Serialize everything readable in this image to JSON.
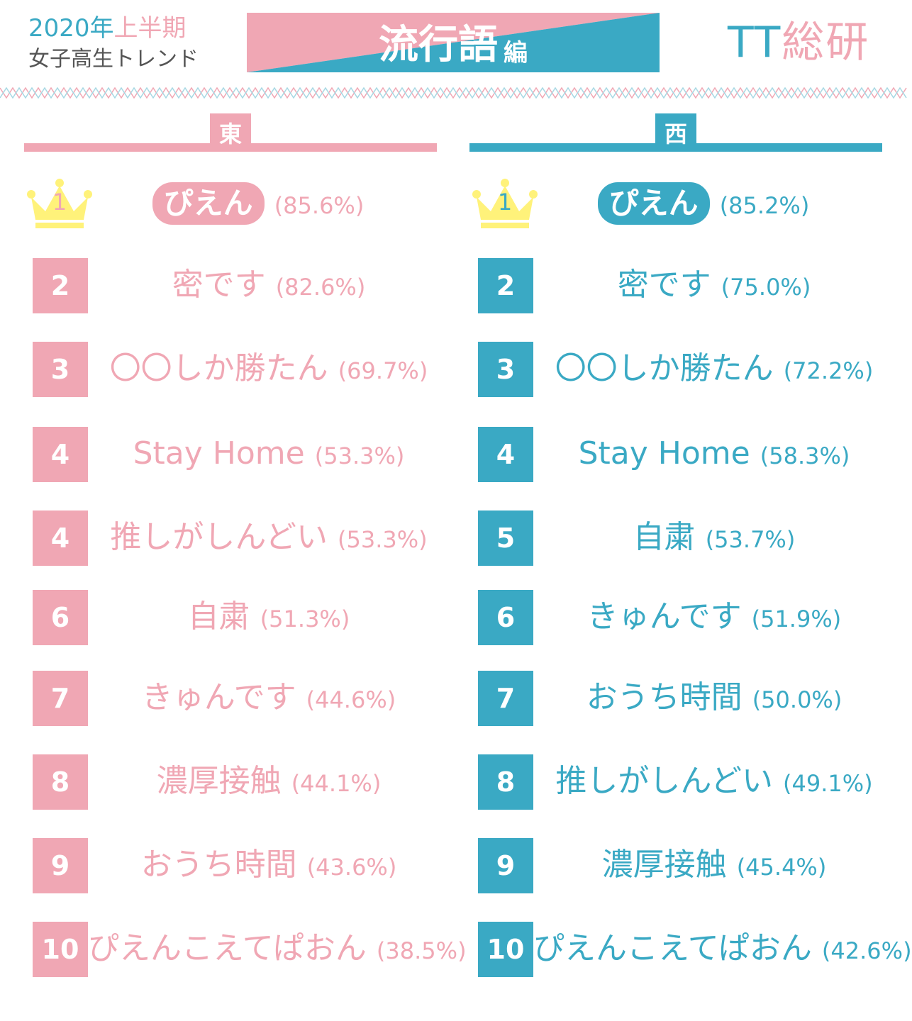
{
  "header": {
    "year": "2020年",
    "half": "上半期",
    "subtitle": "女子高生トレンド",
    "banner_title": "流行語",
    "banner_suffix": "編",
    "logo_tt": "TT",
    "logo_ken": "総研"
  },
  "colors": {
    "pink": "#f0a7b4",
    "blue": "#3aa9c4",
    "crown": "#fff27a"
  },
  "east": {
    "label": "東",
    "items": [
      {
        "rank": "1",
        "term": "ぴえん",
        "pct": "(85.6%)"
      },
      {
        "rank": "2",
        "term": "密です",
        "pct": "(82.6%)"
      },
      {
        "rank": "3",
        "term": "〇〇しか勝たん",
        "pct": "(69.7%)"
      },
      {
        "rank": "4",
        "term": "Stay Home",
        "pct": "(53.3%)"
      },
      {
        "rank": "4",
        "term": "推しがしんどい",
        "pct": "(53.3%)"
      },
      {
        "rank": "6",
        "term": "自粛",
        "pct": "(51.3%)"
      },
      {
        "rank": "7",
        "term": "きゅんです",
        "pct": "(44.6%)"
      },
      {
        "rank": "8",
        "term": "濃厚接触",
        "pct": "(44.1%)"
      },
      {
        "rank": "9",
        "term": "おうち時間",
        "pct": "(43.6%)"
      },
      {
        "rank": "10",
        "term": "ぴえんこえてぱおん",
        "pct": "(38.5%)"
      }
    ]
  },
  "west": {
    "label": "西",
    "items": [
      {
        "rank": "1",
        "term": "ぴえん",
        "pct": "(85.2%)"
      },
      {
        "rank": "2",
        "term": "密です",
        "pct": "(75.0%)"
      },
      {
        "rank": "3",
        "term": "〇〇しか勝たん",
        "pct": "(72.2%)"
      },
      {
        "rank": "4",
        "term": "Stay Home",
        "pct": "(58.3%)"
      },
      {
        "rank": "5",
        "term": "自粛",
        "pct": "(53.7%)"
      },
      {
        "rank": "6",
        "term": "きゅんです",
        "pct": "(51.9%)"
      },
      {
        "rank": "7",
        "term": "おうち時間",
        "pct": "(50.0%)"
      },
      {
        "rank": "8",
        "term": "推しがしんどい",
        "pct": "(49.1%)"
      },
      {
        "rank": "9",
        "term": "濃厚接触",
        "pct": "(45.4%)"
      },
      {
        "rank": "10",
        "term": "ぴえんこえてぱおん",
        "pct": "(42.6%)"
      }
    ]
  }
}
